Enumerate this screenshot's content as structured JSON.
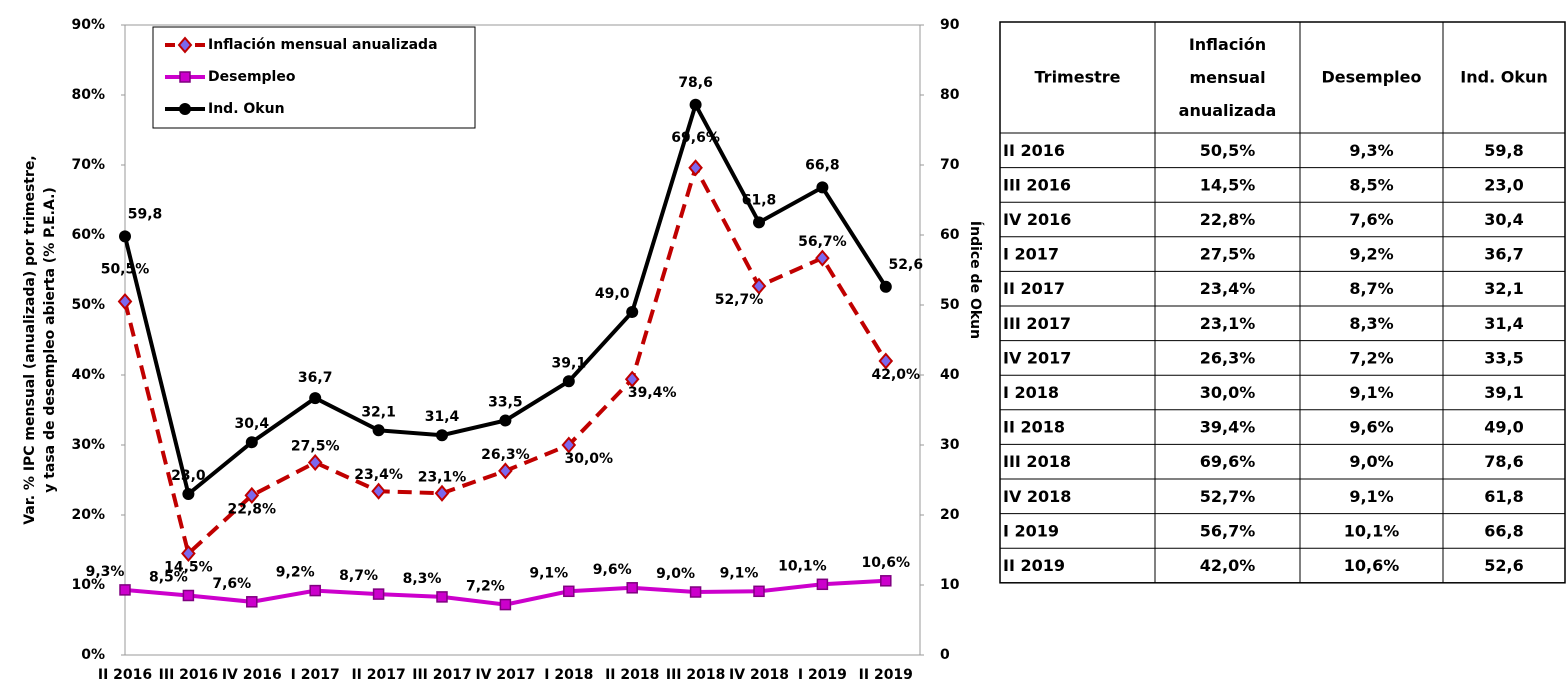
{
  "chart_data": {
    "type": "line",
    "categories": [
      "II 2016",
      "III 2016",
      "IV 2016",
      "I 2017",
      "II 2017",
      "III 2017",
      "IV 2017",
      "I 2018",
      "II 2018",
      "III 2018",
      "IV 2018",
      "I 2019",
      "II 2019"
    ],
    "series": [
      {
        "name": "Inflación mensual anualizada",
        "color": "#c00000",
        "marker": "diamond",
        "dashed": true,
        "values": [
          50.5,
          14.5,
          22.8,
          27.5,
          23.4,
          23.1,
          26.3,
          30.0,
          39.4,
          69.6,
          52.7,
          56.7,
          42.0
        ],
        "value_labels": [
          "50,5%",
          "14,5%",
          "22,8%",
          "27,5%",
          "23,4%",
          "23,1%",
          "26,3%",
          "30,0%",
          "39,4%",
          "69,6%",
          "52,7%",
          "56,7%",
          "42,0%"
        ]
      },
      {
        "name": "Desempleo",
        "color": "#cc00cc",
        "marker": "square",
        "dashed": false,
        "values": [
          9.3,
          8.5,
          7.6,
          9.2,
          8.7,
          8.3,
          7.2,
          9.1,
          9.6,
          9.0,
          9.1,
          10.1,
          10.6
        ],
        "value_labels": [
          "9,3%",
          "8,5%",
          "7,6%",
          "9,2%",
          "8,7%",
          "8,3%",
          "7,2%",
          "9,1%",
          "9,6%",
          "9,0%",
          "9,1%",
          "10,1%",
          "10,6%"
        ]
      },
      {
        "name": "Ind. Okun",
        "color": "#000000",
        "marker": "circle",
        "dashed": false,
        "axis": "y2",
        "values": [
          59.8,
          23.0,
          30.4,
          36.7,
          32.1,
          31.4,
          33.5,
          39.1,
          49.0,
          78.6,
          61.8,
          66.8,
          52.6
        ],
        "value_labels": [
          "59,8",
          "23,0",
          "30,4",
          "36,7",
          "32,1",
          "31,4",
          "33,5",
          "39,1",
          "49,0",
          "78,6",
          "61,8",
          "66,8",
          "52,6"
        ]
      }
    ],
    "ylabel": [
      "Var. % IPC mensual (anualizada) por trimestre,",
      "y tasa de desempleo abierta (% P.E.A.)"
    ],
    "y2label": "Índice de Okun",
    "ylim": [
      0,
      90
    ],
    "yticks": [
      {
        "value": 0,
        "label": "0%"
      },
      {
        "value": 10,
        "label": "10%"
      },
      {
        "value": 20,
        "label": "20%"
      },
      {
        "value": 30,
        "label": "30%"
      },
      {
        "value": 40,
        "label": "40%"
      },
      {
        "value": 50,
        "label": "50%"
      },
      {
        "value": 60,
        "label": "60%"
      },
      {
        "value": 70,
        "label": "70%"
      },
      {
        "value": 80,
        "label": "80%"
      },
      {
        "value": 90,
        "label": "90%"
      }
    ],
    "y2lim": [
      0,
      90
    ],
    "y2ticks": [
      0,
      10,
      20,
      30,
      40,
      50,
      60,
      70,
      80,
      90
    ],
    "legend": "top-left",
    "grid": false
  },
  "table": {
    "headers": [
      "Trimestre",
      "Inflación mensual anualizada",
      "Desempleo",
      "Ind. Okun"
    ],
    "rows": [
      [
        "II 2016",
        "50,5%",
        "9,3%",
        "59,8"
      ],
      [
        "III 2016",
        "14,5%",
        "8,5%",
        "23,0"
      ],
      [
        "IV 2016",
        "22,8%",
        "7,6%",
        "30,4"
      ],
      [
        "I 2017",
        "27,5%",
        "9,2%",
        "36,7"
      ],
      [
        "II 2017",
        "23,4%",
        "8,7%",
        "32,1"
      ],
      [
        "III 2017",
        "23,1%",
        "8,3%",
        "31,4"
      ],
      [
        "IV 2017",
        "26,3%",
        "7,2%",
        "33,5"
      ],
      [
        "I 2018",
        "30,0%",
        "9,1%",
        "39,1"
      ],
      [
        "II 2018",
        "39,4%",
        "9,6%",
        "49,0"
      ],
      [
        "III 2018",
        "69,6%",
        "9,0%",
        "78,6"
      ],
      [
        "IV 2018",
        "52,7%",
        "9,1%",
        "61,8"
      ],
      [
        "I 2019",
        "56,7%",
        "10,1%",
        "66,8"
      ],
      [
        "II 2019",
        "42,0%",
        "10,6%",
        "52,6"
      ]
    ]
  }
}
